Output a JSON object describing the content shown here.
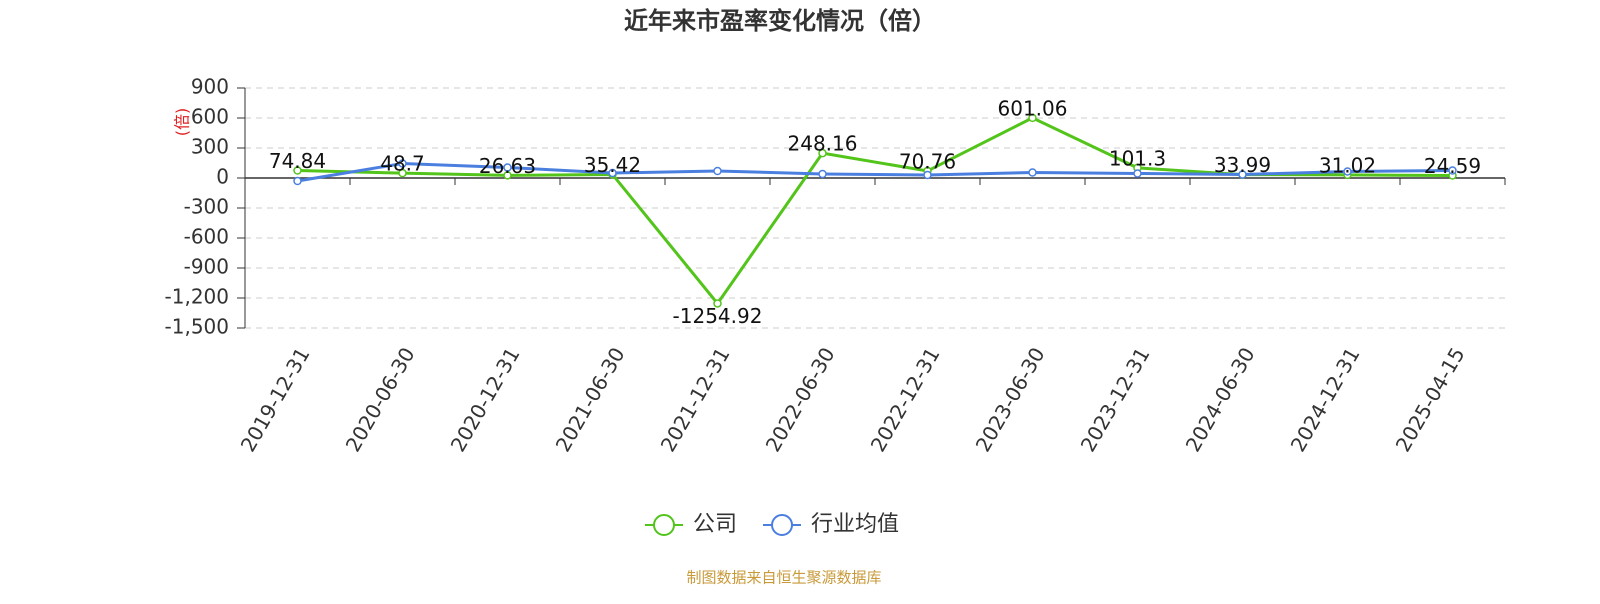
{
  "chart_data": {
    "type": "line",
    "title": "近年来市盈率变化情况（倍）",
    "y_label": "(倍)",
    "source": "制图数据来自恒生聚源数据库",
    "categories": [
      "2019-12-31",
      "2020-06-30",
      "2020-12-31",
      "2021-06-30",
      "2021-12-31",
      "2022-06-30",
      "2022-12-31",
      "2023-06-30",
      "2023-12-31",
      "2024-06-30",
      "2024-12-31",
      "2025-04-15"
    ],
    "series": [
      {
        "name": "公司",
        "color": "#52c41a",
        "values": [
          74.84,
          48.7,
          26.63,
          35.42,
          -1254.92,
          248.16,
          70.76,
          601.06,
          101.3,
          33.99,
          31.02,
          24.59
        ]
      },
      {
        "name": "行业均值",
        "color": "#4a7fe0",
        "values": [
          -30,
          145,
          105,
          50,
          70,
          40,
          30,
          55,
          45,
          35,
          65,
          75
        ]
      }
    ],
    "ylim": [
      -1500,
      900
    ],
    "yticks": [
      900,
      600,
      300,
      0,
      -300,
      -600,
      -900,
      {
        "value": -1200,
        "label": "-1,200"
      },
      {
        "value": -1500,
        "label": "-1,500"
      }
    ],
    "grid": true
  }
}
